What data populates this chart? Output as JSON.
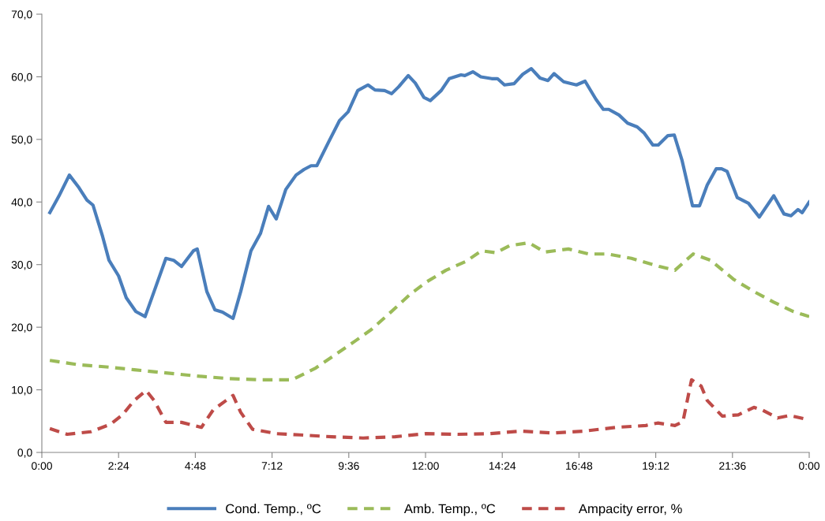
{
  "chart_data": {
    "type": "line",
    "legend": "bottom",
    "grid": false,
    "xlim": [
      0,
      24
    ],
    "ylim": [
      0,
      70
    ],
    "xticks": [
      {
        "value": 0,
        "label": "0:00"
      },
      {
        "value": 2.4,
        "label": "2:24"
      },
      {
        "value": 4.8,
        "label": "4:48"
      },
      {
        "value": 7.2,
        "label": "7:12"
      },
      {
        "value": 9.6,
        "label": "9:36"
      },
      {
        "value": 12,
        "label": "12:00"
      },
      {
        "value": 14.4,
        "label": "14:24"
      },
      {
        "value": 16.8,
        "label": "16:48"
      },
      {
        "value": 19.2,
        "label": "19:12"
      },
      {
        "value": 21.6,
        "label": "21:36"
      },
      {
        "value": 24,
        "label": "0:00"
      }
    ],
    "yticks": [
      {
        "value": 0,
        "label": "0,0"
      },
      {
        "value": 10,
        "label": "10,0"
      },
      {
        "value": 20,
        "label": "20,0"
      },
      {
        "value": 30,
        "label": "30,0"
      },
      {
        "value": 40,
        "label": "40,0"
      },
      {
        "value": 50,
        "label": "50,0"
      },
      {
        "value": 60,
        "label": "60,0"
      },
      {
        "value": 70,
        "label": "70,0"
      }
    ],
    "series": [
      {
        "name": "Cond. Temp., ºC",
        "color": "#4a7ebb",
        "line_style": "solid",
        "x": [
          0.25,
          0.54,
          0.86,
          1.16,
          1.41,
          1.6,
          1.9,
          2.1,
          2.4,
          2.64,
          2.94,
          3.23,
          3.51,
          3.88,
          4.12,
          4.37,
          4.74,
          4.86,
          5.16,
          5.41,
          5.65,
          5.98,
          6.22,
          6.54,
          6.84,
          7.09,
          7.33,
          7.63,
          7.95,
          8.2,
          8.42,
          8.6,
          8.96,
          9.31,
          9.58,
          9.88,
          10.2,
          10.42,
          10.72,
          10.94,
          11.16,
          11.46,
          11.68,
          11.95,
          12.15,
          12.49,
          12.74,
          13.11,
          13.23,
          13.48,
          13.73,
          14.07,
          14.25,
          14.47,
          14.77,
          15.04,
          15.31,
          15.58,
          15.83,
          16.02,
          16.32,
          16.72,
          16.99,
          17.33,
          17.56,
          17.73,
          18.05,
          18.32,
          18.62,
          18.84,
          19.11,
          19.28,
          19.58,
          19.78,
          20.02,
          20.35,
          20.57,
          20.81,
          21.09,
          21.26,
          21.43,
          21.75,
          22.1,
          22.44,
          22.89,
          23.21,
          23.43,
          23.65,
          23.78,
          24.0
        ],
        "values": [
          38.3,
          41.0,
          44.3,
          42.3,
          40.3,
          39.5,
          34.5,
          30.7,
          28.2,
          24.7,
          22.5,
          21.7,
          25.7,
          31.0,
          30.7,
          29.7,
          32.2,
          32.5,
          25.7,
          22.8,
          22.4,
          21.4,
          25.7,
          32.2,
          35.0,
          39.3,
          37.3,
          42.0,
          44.3,
          45.2,
          45.8,
          45.8,
          49.5,
          53.0,
          54.4,
          57.8,
          58.7,
          57.9,
          57.8,
          57.3,
          58.4,
          60.2,
          59.0,
          56.7,
          56.2,
          57.8,
          59.7,
          60.3,
          60.2,
          60.8,
          60.0,
          59.7,
          59.7,
          58.7,
          58.9,
          60.4,
          61.3,
          59.8,
          59.4,
          60.5,
          59.2,
          58.7,
          59.3,
          56.4,
          54.8,
          54.8,
          53.9,
          52.6,
          52.0,
          51.0,
          49.1,
          49.1,
          50.6,
          50.7,
          46.7,
          39.4,
          39.4,
          42.7,
          45.3,
          45.3,
          44.9,
          40.7,
          39.8,
          37.6,
          41.0,
          38.1,
          37.8,
          38.8,
          38.3,
          40.0
        ]
      },
      {
        "name": "Amb. Temp., ºC",
        "color": "#9bbb59",
        "line_style": "dashed",
        "x": [
          0.25,
          1.16,
          2.15,
          2.89,
          3.88,
          4.86,
          5.85,
          6.84,
          7.83,
          8.57,
          9.06,
          9.8,
          10.3,
          10.91,
          11.53,
          12.02,
          12.64,
          13.26,
          13.75,
          14.2,
          14.62,
          15.23,
          15.73,
          16.47,
          17.09,
          17.7,
          18.44,
          19.31,
          19.8,
          20.37,
          20.91,
          21.65,
          22.27,
          22.89,
          23.51,
          24.0
        ],
        "values": [
          14.7,
          14.0,
          13.6,
          13.2,
          12.7,
          12.2,
          11.8,
          11.6,
          11.6,
          13.5,
          15.2,
          17.8,
          19.6,
          22.4,
          25.3,
          27.2,
          29.1,
          30.5,
          32.2,
          31.9,
          33.0,
          33.5,
          32.0,
          32.5,
          31.7,
          31.7,
          31.0,
          29.7,
          29.1,
          31.7,
          30.7,
          27.6,
          25.7,
          24.0,
          22.5,
          21.7
        ]
      },
      {
        "name": "Ampacity error, %",
        "color": "#be4b48",
        "line_style": "dashed",
        "x": [
          0.25,
          0.79,
          1.53,
          2.15,
          2.52,
          2.89,
          3.26,
          3.51,
          3.88,
          4.37,
          4.99,
          5.36,
          5.98,
          6.22,
          6.59,
          7.33,
          8.07,
          9.06,
          10.05,
          11.04,
          12.02,
          13.01,
          14.0,
          14.99,
          15.98,
          16.96,
          17.95,
          18.89,
          19.26,
          19.8,
          20.05,
          20.32,
          20.62,
          20.81,
          21.28,
          21.78,
          22.27,
          22.52,
          23.01,
          23.38,
          24.0
        ],
        "values": [
          3.8,
          2.9,
          3.3,
          4.5,
          6.0,
          8.3,
          9.9,
          8.3,
          4.8,
          4.8,
          4.0,
          6.8,
          9.1,
          6.4,
          3.7,
          3.0,
          2.8,
          2.5,
          2.3,
          2.5,
          3.0,
          2.9,
          3.0,
          3.4,
          3.1,
          3.4,
          4.0,
          4.3,
          4.7,
          4.3,
          4.9,
          11.6,
          10.6,
          8.3,
          5.8,
          6.0,
          7.2,
          6.8,
          5.5,
          5.9,
          5.2
        ]
      }
    ]
  }
}
